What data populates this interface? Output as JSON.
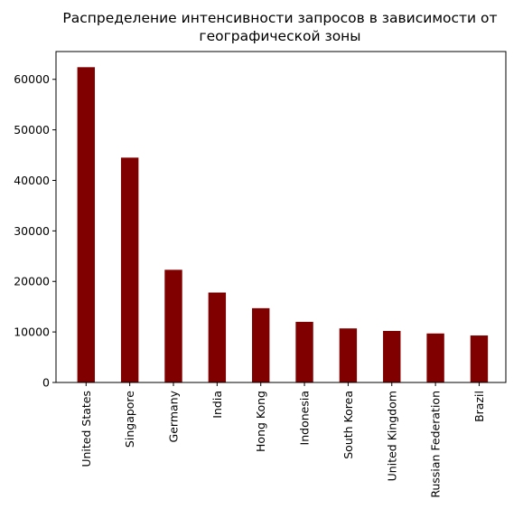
{
  "chart_data": {
    "type": "bar",
    "title_lines": [
      "Распределение интенсивности запросов в зависимости от",
      "географической зоны"
    ],
    "xlabel": "",
    "ylabel": "",
    "categories": [
      "United States",
      "Singapore",
      "Germany",
      "India",
      "Hong Kong",
      "Indonesia",
      "South Korea",
      "United Kingdom",
      "Russian Federation",
      "Brazil"
    ],
    "values": [
      62400,
      44500,
      22300,
      17800,
      14700,
      12000,
      10700,
      10200,
      9700,
      9300
    ],
    "ylim": [
      0,
      65500
    ],
    "yticks": [
      0,
      10000,
      20000,
      30000,
      40000,
      50000,
      60000
    ],
    "bar_color": "#800000",
    "grid": false,
    "legend": "none"
  }
}
